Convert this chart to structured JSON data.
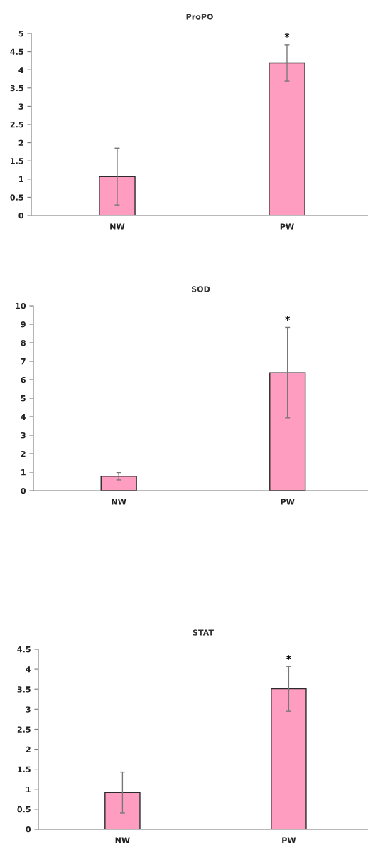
{
  "chart_data": [
    {
      "type": "bar",
      "title": "ProPO",
      "categories": [
        "NW",
        "PW"
      ],
      "values": [
        1.07,
        4.19
      ],
      "errors": [
        0.78,
        0.5
      ],
      "color": "#ff9dc0",
      "ylim": [
        0,
        5
      ],
      "yticks": [
        0,
        0.5,
        1,
        1.5,
        2,
        2.5,
        3,
        3.5,
        4,
        4.5,
        5
      ],
      "grid": false,
      "legend": false,
      "annotations": [
        {
          "text": "*",
          "x": "PW",
          "y": 4.7
        }
      ]
    },
    {
      "type": "bar",
      "title": "SOD",
      "categories": [
        "NW",
        "PW"
      ],
      "values": [
        0.78,
        6.38
      ],
      "errors": [
        0.2,
        2.45
      ],
      "color": "#ff9dc0",
      "ylim": [
        0,
        10
      ],
      "yticks": [
        0,
        1,
        2,
        3,
        4,
        5,
        6,
        7,
        8,
        9,
        10
      ],
      "grid": false,
      "legend": false,
      "annotations": [
        {
          "text": "*",
          "x": "PW",
          "y": 8.83
        }
      ]
    },
    {
      "type": "bar",
      "title": "STAT",
      "categories": [
        "NW",
        "PW"
      ],
      "values": [
        0.92,
        3.51
      ],
      "errors": [
        0.51,
        0.56
      ],
      "color": "#ff9dc0",
      "ylim": [
        0,
        4.5
      ],
      "yticks": [
        0,
        0.5,
        1,
        1.5,
        2,
        2.5,
        3,
        3.5,
        4,
        4.5
      ],
      "grid": false,
      "legend": false,
      "annotations": [
        {
          "text": "*",
          "x": "PW",
          "y": 4.07
        }
      ]
    }
  ]
}
